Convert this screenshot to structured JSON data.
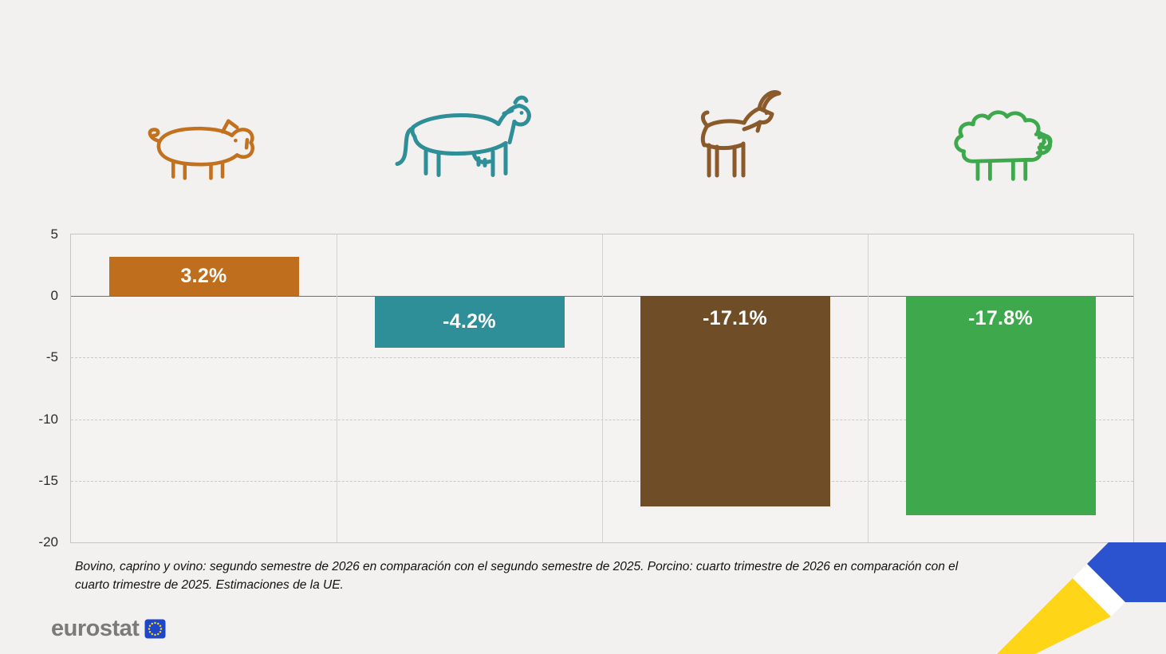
{
  "chart_data": {
    "type": "bar",
    "categories": [
      "Porcino",
      "Bovino",
      "Caprino",
      "Ovino"
    ],
    "values": [
      3.2,
      -4.2,
      -17.1,
      -17.8
    ],
    "labels": [
      "3.2%",
      "-4.2%",
      "-17.1%",
      "-17.8%"
    ],
    "colors": [
      "#BF6E1E",
      "#2E8F99",
      "#6F4E27",
      "#3EA94C"
    ],
    "icon_colors": [
      "#C2711F",
      "#2E8F99",
      "#8A5A2B",
      "#3EA94C"
    ],
    "icons": [
      "pig-icon",
      "cow-icon",
      "goat-icon",
      "sheep-icon"
    ],
    "yticks": [
      5,
      0,
      -5,
      -10,
      -15,
      -20
    ],
    "ylim": [
      -20,
      5
    ],
    "grid": "dashed horizontal gridlines, solid vertical column dividers",
    "legend": "none",
    "title": ""
  },
  "footnote": "Bovino, caprino y ovino: segundo semestre de 2026 en comparación con el segundo semestre de 2025. Porcino: cuarto trimestre de 2026 en comparación con el cuarto trimestre de 2025. Estimaciones de la UE.",
  "branding": {
    "logo_text": "eurostat",
    "logo_text_color": "#7A7A7A",
    "flag_blue": "#1E46C8",
    "star_yellow": "#FFD617"
  },
  "ribbon": {
    "yellow": "#FFD617",
    "blue": "#2B53D0",
    "white": "#FFFFFF"
  },
  "background": "#F2F1EF"
}
